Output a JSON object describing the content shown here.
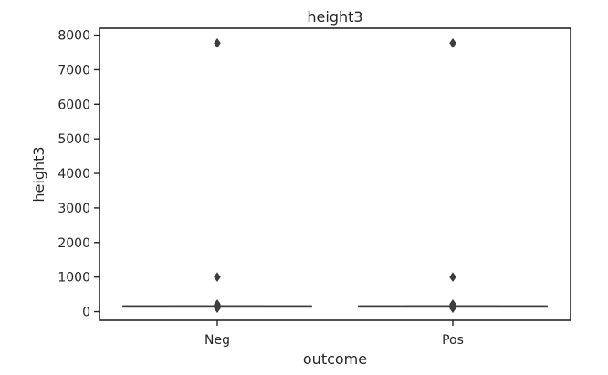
{
  "chart_data": {
    "type": "box",
    "title": "height3",
    "xlabel": "outcome",
    "ylabel": "height3",
    "categories": [
      "Neg",
      "Pos"
    ],
    "ylim": [
      -250,
      8200
    ],
    "yticks": [
      0,
      1000,
      2000,
      3000,
      4000,
      5000,
      6000,
      7000,
      8000
    ],
    "grid": false,
    "legend": "none",
    "boxes": [
      {
        "category": "Neg",
        "q1": 150,
        "median": 155,
        "q3": 160,
        "whisker_low": 145,
        "whisker_high": 165,
        "outliers": [
          7770,
          1000,
          215,
          185,
          150,
          100
        ]
      },
      {
        "category": "Pos",
        "q1": 150,
        "median": 155,
        "q3": 160,
        "whisker_low": 145,
        "whisker_high": 165,
        "outliers": [
          7770,
          1000,
          215,
          185,
          150,
          100
        ]
      }
    ],
    "colors": {
      "box_line": "#3d3d3d",
      "axis": "#262626",
      "marker": "#3d3d3d"
    }
  }
}
